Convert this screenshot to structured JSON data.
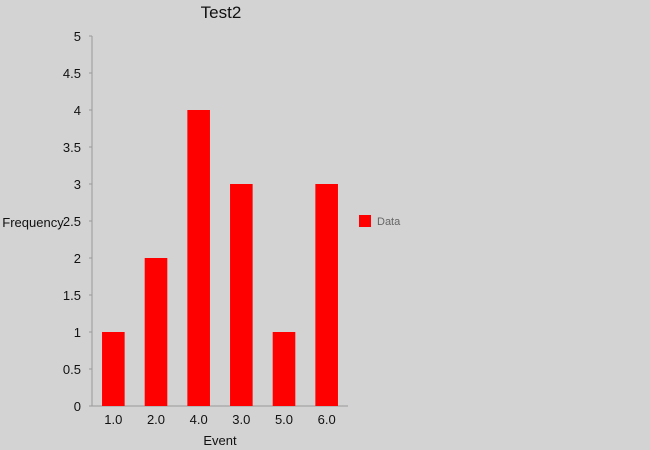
{
  "chart_data": {
    "type": "bar",
    "title": "Test2",
    "xlabel": "Event",
    "ylabel": "Frequency",
    "categories": [
      "1.0",
      "2.0",
      "4.0",
      "3.0",
      "5.0",
      "6.0"
    ],
    "series": [
      {
        "name": "Data",
        "values": [
          1,
          2,
          4,
          3,
          1,
          3
        ],
        "color": "#ff0000"
      }
    ],
    "ylim": [
      0,
      5
    ],
    "yticks": [
      "0",
      "0.5",
      "1",
      "1.5",
      "2",
      "2.5",
      "3",
      "3.5",
      "4",
      "4.5",
      "5"
    ],
    "grid": false,
    "legend_position": "right",
    "background_color": "#d3d3d3",
    "axis_color": "#999999"
  }
}
